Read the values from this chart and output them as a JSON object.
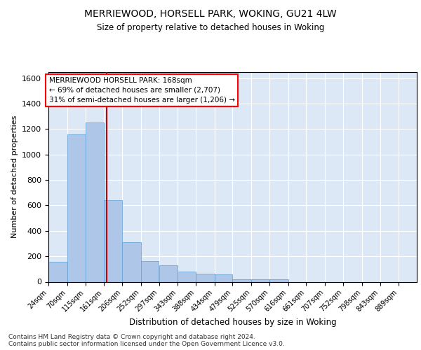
{
  "title1": "MERRIEWOOD, HORSELL PARK, WOKING, GU21 4LW",
  "title2": "Size of property relative to detached houses in Woking",
  "xlabel": "Distribution of detached houses by size in Woking",
  "ylabel": "Number of detached properties",
  "footnote1": "Contains HM Land Registry data © Crown copyright and database right 2024.",
  "footnote2": "Contains public sector information licensed under the Open Government Licence v3.0.",
  "annotation_line1": "MERRIEWOOD HORSELL PARK: 168sqm",
  "annotation_line2": "← 69% of detached houses are smaller (2,707)",
  "annotation_line3": "31% of semi-detached houses are larger (1,206) →",
  "bar_color": "#aec6e8",
  "bar_edge_color": "#5a9fd4",
  "vline_color": "#cc0000",
  "vline_x": 168,
  "background_color": "#dce8f5",
  "ylim": [
    0,
    1650
  ],
  "yticks": [
    0,
    200,
    400,
    600,
    800,
    1000,
    1200,
    1400,
    1600
  ],
  "bin_edges": [
    24,
    70,
    115,
    161,
    206,
    252,
    297,
    343,
    388,
    434,
    479,
    525,
    570,
    616,
    661,
    707,
    752,
    798,
    843,
    889,
    934
  ],
  "bar_heights": [
    155,
    1160,
    1250,
    640,
    310,
    160,
    130,
    80,
    65,
    60,
    20,
    20,
    20,
    0,
    0,
    0,
    0,
    0,
    0,
    0
  ]
}
